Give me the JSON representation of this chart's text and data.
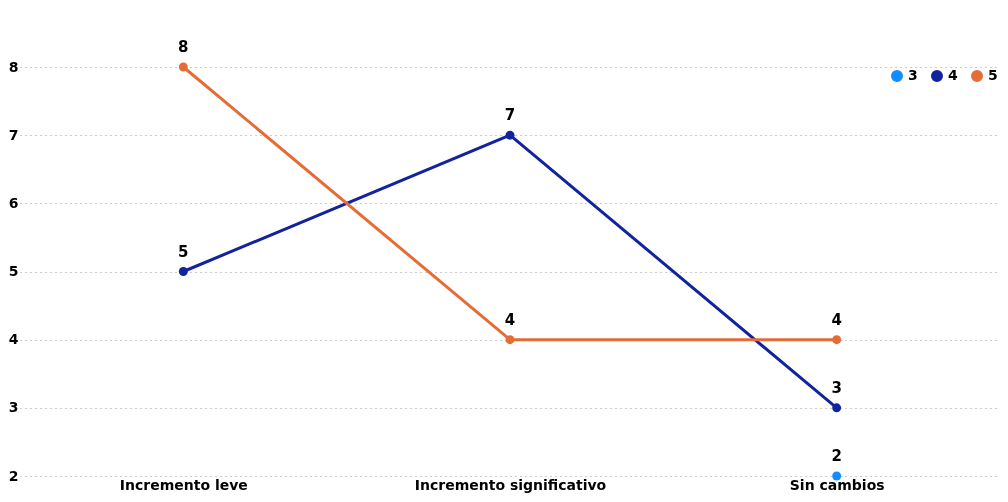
{
  "chart_data": {
    "type": "line",
    "categories": [
      "Incremento leve",
      "Incremento significativo",
      "Sin cambios"
    ],
    "series": [
      {
        "name": "3",
        "color": "#118dff",
        "values": [
          null,
          null,
          2
        ]
      },
      {
        "name": "4",
        "color": "#12239e",
        "values": [
          5,
          7,
          3
        ]
      },
      {
        "name": "5",
        "color": "#e66c37",
        "values": [
          8,
          4,
          4
        ]
      }
    ],
    "ylim": [
      2,
      8
    ],
    "yticks": [
      2,
      3,
      4,
      5,
      6,
      7,
      8
    ],
    "grid": "y",
    "legend": "top right",
    "marker": "circle",
    "line_style": "solid",
    "data_labels": true
  }
}
